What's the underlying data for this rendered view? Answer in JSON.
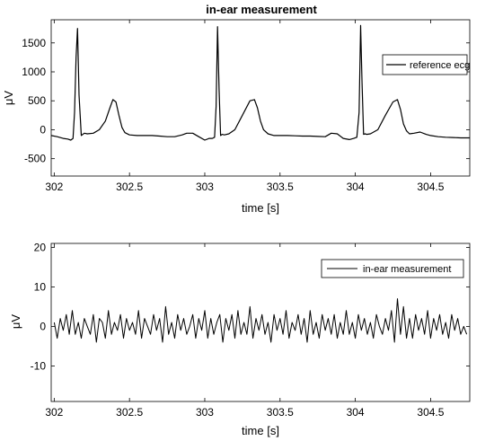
{
  "figure": {
    "title": "in-ear measurement"
  },
  "chart_data": [
    {
      "type": "line",
      "title": "in-ear measurement",
      "xlabel": "time [s]",
      "ylabel": "μV",
      "xlim": [
        301.98,
        304.76
      ],
      "ylim": [
        -800,
        1900
      ],
      "xticks": [
        "302",
        "302.5",
        "303",
        "303.5",
        "304",
        "304.5"
      ],
      "yticks": [
        "1500",
        "1000",
        "500",
        "0",
        "-500"
      ],
      "xtick_values": [
        302,
        302.5,
        303,
        303.5,
        304,
        304.5
      ],
      "ytick_values": [
        1500,
        1000,
        500,
        0,
        -500
      ],
      "legend": {
        "position": "right",
        "entries": [
          "reference ecg"
        ]
      },
      "grid": false,
      "series": [
        {
          "name": "reference ecg",
          "color": "#000000",
          "x": [
            301.98,
            302.02,
            302.06,
            302.09,
            302.11,
            302.125,
            302.135,
            302.145,
            302.155,
            302.165,
            302.18,
            302.2,
            302.22,
            302.26,
            302.3,
            302.34,
            302.37,
            302.39,
            302.41,
            302.43,
            302.45,
            302.47,
            302.5,
            302.55,
            302.6,
            302.65,
            302.7,
            302.75,
            302.8,
            302.85,
            302.88,
            302.92,
            302.96,
            303.0,
            303.03,
            303.05,
            303.065,
            303.075,
            303.085,
            303.095,
            303.105,
            303.115,
            303.13,
            303.16,
            303.2,
            303.25,
            303.3,
            303.33,
            303.35,
            303.37,
            303.39,
            303.42,
            303.46,
            303.5,
            303.55,
            303.6,
            303.65,
            303.7,
            303.75,
            303.8,
            303.84,
            303.88,
            303.92,
            303.96,
            303.99,
            304.01,
            304.025,
            304.035,
            304.045,
            304.055,
            304.065,
            304.075,
            304.1,
            304.15,
            304.2,
            304.25,
            304.28,
            304.3,
            304.32,
            304.34,
            304.36,
            304.39,
            304.43,
            304.47,
            304.5,
            304.55,
            304.6,
            304.65,
            304.7,
            304.76
          ],
          "y": [
            -100,
            -120,
            -150,
            -160,
            -180,
            -150,
            300,
            1250,
            1750,
            600,
            -100,
            -60,
            -70,
            -60,
            0,
            150,
            380,
            520,
            480,
            250,
            40,
            -50,
            -90,
            -100,
            -100,
            -100,
            -110,
            -120,
            -120,
            -90,
            -60,
            -60,
            -120,
            -180,
            -150,
            -150,
            -130,
            400,
            1780,
            700,
            -100,
            -80,
            -90,
            -70,
            0,
            250,
            500,
            520,
            380,
            150,
            0,
            -70,
            -100,
            -100,
            -100,
            -105,
            -110,
            -110,
            -115,
            -120,
            -60,
            -70,
            -150,
            -170,
            -150,
            -130,
            300,
            1800,
            800,
            -80,
            -70,
            -80,
            -70,
            0,
            250,
            480,
            520,
            350,
            100,
            -20,
            -70,
            -60,
            -40,
            -80,
            -100,
            -120,
            -130,
            -135,
            -140,
            -140
          ]
        }
      ]
    },
    {
      "type": "line",
      "title": "",
      "xlabel": "time [s]",
      "ylabel": "μV",
      "xlim": [
        301.98,
        304.76
      ],
      "ylim": [
        -19,
        21
      ],
      "xticks": [
        "302",
        "302.5",
        "303",
        "303.5",
        "304",
        "304.5"
      ],
      "yticks": [
        "20",
        "10",
        "0",
        "-10"
      ],
      "xtick_values": [
        302,
        302.5,
        303,
        303.5,
        304,
        304.5
      ],
      "ytick_values": [
        20,
        10,
        0,
        -10
      ],
      "legend": {
        "position": "top-right",
        "entries": [
          "in-ear measurement"
        ]
      },
      "grid": false,
      "series": [
        {
          "name": "in-ear measurement",
          "color": "#000000",
          "x": [
            302.0,
            302.02,
            302.04,
            302.06,
            302.08,
            302.1,
            302.12,
            302.14,
            302.16,
            302.18,
            302.2,
            302.22,
            302.24,
            302.26,
            302.28,
            302.3,
            302.32,
            302.34,
            302.36,
            302.38,
            302.4,
            302.42,
            302.44,
            302.46,
            302.48,
            302.5,
            302.52,
            302.54,
            302.56,
            302.58,
            302.6,
            302.62,
            302.64,
            302.66,
            302.68,
            302.7,
            302.72,
            302.74,
            302.76,
            302.78,
            302.8,
            302.82,
            302.84,
            302.86,
            302.88,
            302.9,
            302.92,
            302.94,
            302.96,
            302.98,
            303.0,
            303.02,
            303.04,
            303.06,
            303.08,
            303.1,
            303.12,
            303.14,
            303.16,
            303.18,
            303.2,
            303.22,
            303.24,
            303.26,
            303.28,
            303.3,
            303.32,
            303.34,
            303.36,
            303.38,
            303.4,
            303.42,
            303.44,
            303.46,
            303.48,
            303.5,
            303.52,
            303.54,
            303.56,
            303.58,
            303.6,
            303.62,
            303.64,
            303.66,
            303.68,
            303.7,
            303.72,
            303.74,
            303.76,
            303.78,
            303.8,
            303.82,
            303.84,
            303.86,
            303.88,
            303.9,
            303.92,
            303.94,
            303.96,
            303.98,
            304.0,
            304.02,
            304.04,
            304.06,
            304.08,
            304.1,
            304.12,
            304.14,
            304.16,
            304.18,
            304.2,
            304.22,
            304.24,
            304.26,
            304.28,
            304.3,
            304.32,
            304.34,
            304.36,
            304.38,
            304.4,
            304.42,
            304.44,
            304.46,
            304.48,
            304.5,
            304.52,
            304.54,
            304.56,
            304.58,
            304.6,
            304.62,
            304.64,
            304.66,
            304.68,
            304.7,
            304.72,
            304.74
          ],
          "y": [
            1,
            -3,
            2,
            -1,
            3,
            -2,
            4,
            -2,
            1,
            -3,
            2,
            0,
            -2,
            3,
            -4,
            2,
            1,
            -3,
            4,
            -2,
            1,
            -1,
            3,
            -3,
            2,
            -1,
            1,
            -2,
            4,
            -3,
            2,
            0,
            -2,
            3,
            -1,
            2,
            -4,
            5,
            -2,
            1,
            -3,
            3,
            -1,
            2,
            -2,
            0,
            3,
            -3,
            2,
            -1,
            4,
            -3,
            2,
            -2,
            1,
            3,
            -4,
            2,
            -1,
            3,
            -3,
            4,
            -2,
            1,
            -2,
            5,
            -3,
            2,
            -1,
            3,
            -2,
            1,
            -4,
            3,
            -1,
            2,
            -2,
            4,
            -3,
            1,
            -1,
            3,
            -2,
            2,
            -4,
            4,
            -2,
            1,
            -3,
            3,
            -1,
            2,
            -2,
            3,
            -3,
            1,
            -2,
            4,
            -2,
            1,
            -3,
            3,
            -1,
            2,
            -2,
            1,
            -3,
            3,
            0,
            -2,
            2,
            -1,
            4,
            -4,
            7,
            -2,
            5,
            -3,
            2,
            -3,
            3,
            -1,
            2,
            -2,
            4,
            -3,
            2,
            -1,
            3,
            -2,
            1,
            -3,
            3,
            -1,
            2,
            -2,
            0,
            -2
          ]
        }
      ]
    }
  ]
}
